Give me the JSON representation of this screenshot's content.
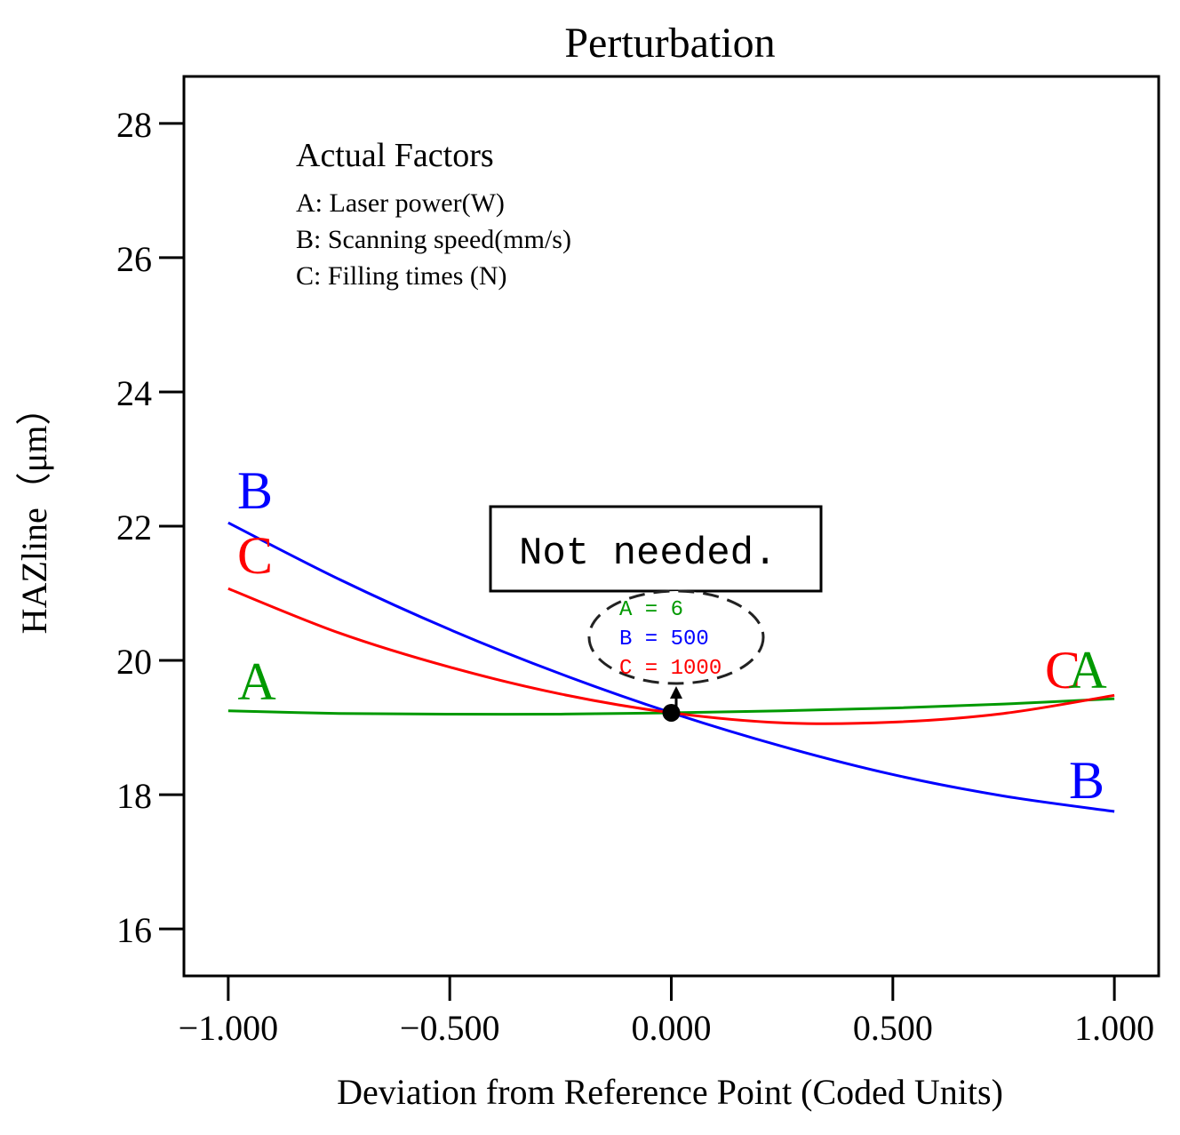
{
  "chart_data": {
    "type": "line",
    "title": "Perturbation",
    "xlabel": "Deviation from Reference Point (Coded Units)",
    "ylabel": "HAZline（μm）",
    "xlim": [
      -1.1,
      1.1
    ],
    "ylim": [
      15.3,
      28.7
    ],
    "x_ticks": [
      -1.0,
      -0.5,
      0.0,
      0.5,
      1.0
    ],
    "x_tick_labels": [
      "−1.000",
      "−0.500",
      "0.000",
      "0.500",
      "1.000"
    ],
    "y_ticks": [
      16,
      18,
      20,
      22,
      24,
      26,
      28
    ],
    "y_tick_labels": [
      "16",
      "18",
      "20",
      "22",
      "24",
      "26",
      "28"
    ],
    "legend": {
      "title": "Actual Factors",
      "entries": [
        "A: Laser power(W)",
        "B: Scanning speed(mm/s)",
        "C: Filling times (N)"
      ]
    },
    "series": [
      {
        "name": "A",
        "color": "#009900",
        "x": [
          -1.0,
          -0.75,
          -0.5,
          -0.25,
          0.0,
          0.25,
          0.5,
          0.75,
          1.0
        ],
        "values": [
          19.25,
          19.21,
          19.2,
          19.2,
          19.22,
          19.25,
          19.29,
          19.35,
          19.43
        ]
      },
      {
        "name": "B",
        "color": "#0000ff",
        "x": [
          -1.0,
          -0.75,
          -0.5,
          -0.25,
          0.0,
          0.25,
          0.5,
          0.75,
          1.0
        ],
        "values": [
          22.05,
          21.21,
          20.46,
          19.8,
          19.22,
          18.72,
          18.3,
          17.98,
          17.75
        ]
      },
      {
        "name": "C",
        "color": "#ff0000",
        "x": [
          -1.0,
          -0.75,
          -0.5,
          -0.25,
          0.0,
          0.25,
          0.5,
          0.75,
          1.0
        ],
        "values": [
          21.07,
          20.41,
          19.9,
          19.5,
          19.22,
          19.07,
          19.08,
          19.21,
          19.48
        ]
      }
    ],
    "reference_point": {
      "x": 0.0,
      "y": 19.22
    },
    "annotation": {
      "text": "Not needed.",
      "lines": [
        {
          "label": "A = 6",
          "color": "#009900"
        },
        {
          "label": "B = 500",
          "color": "#0000ff"
        },
        {
          "label": "C = 1000",
          "color": "#ff0000"
        }
      ]
    }
  }
}
